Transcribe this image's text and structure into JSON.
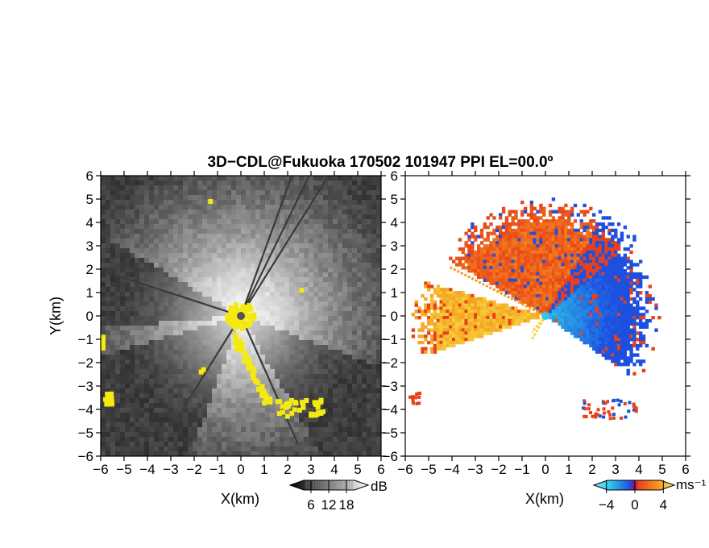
{
  "title": "3D−CDL@Fukuoka 170502 101947 PPI EL=00.0º",
  "colors": {
    "snr_dark": "#202020",
    "snr_bright": "#f4f4f4",
    "mask_yellow": "#f5ea10",
    "vel_red": "#e8401a",
    "vel_orange": "#f59a20",
    "vel_yellow": "#f6d23a",
    "vel_blue": "#1e50e0",
    "vel_cyan": "#30c8e8",
    "no_data": "#ffffff"
  },
  "chart_data": [
    {
      "type": "heatmap",
      "name": "snr-ppi",
      "xlabel": "X(km)",
      "ylabel": "Y(km)",
      "xlim": [
        -6,
        6
      ],
      "ylim": [
        -6,
        6
      ],
      "xticks": [
        "−6",
        "−5",
        "−4",
        "−3",
        "−2",
        "−1",
        "0",
        "1",
        "2",
        "3",
        "4",
        "5",
        "6"
      ],
      "yticks": [
        "−6",
        "−5",
        "−4",
        "−3",
        "−2",
        "−1",
        "0",
        "1",
        "2",
        "3",
        "4",
        "5",
        "6"
      ],
      "colorbar": {
        "unit": "dB",
        "ticks": [
          "6",
          "12",
          "18"
        ],
        "min": 0,
        "max": 24,
        "tick_values": [
          6,
          12,
          18
        ]
      },
      "blocked_sectors_deg": [
        [
          -145,
          -110
        ],
        [
          -60,
          -20
        ],
        [
          150,
          185
        ],
        [
          196,
          206
        ]
      ],
      "blanked_sector_deg": [
        205,
        245
      ]
    },
    {
      "type": "heatmap",
      "name": "doppler-velocity-ppi",
      "xlabel": "X(km)",
      "xlim": [
        -6,
        6
      ],
      "ylim": [
        -6,
        6
      ],
      "xticks": [
        "−6",
        "−5",
        "−4",
        "−3",
        "−2",
        "−1",
        "0",
        "1",
        "2",
        "3",
        "4",
        "5",
        "6"
      ],
      "colorbar": {
        "unit": "ms⁻¹",
        "ticks": [
          "−4",
          "0",
          "4"
        ],
        "min": -6,
        "max": 6,
        "tick_values": [
          -4,
          0,
          4
        ]
      },
      "velocity_regions": [
        {
          "sector_deg": [
            -35,
            40
          ],
          "max_range_km": 4.8,
          "sign": "negative"
        },
        {
          "sector_deg": [
            40,
            60
          ],
          "max_range_km": 5.2,
          "sign": "mixed"
        },
        {
          "sector_deg": [
            60,
            150
          ],
          "max_range_km": 5.0,
          "sign": "positive"
        },
        {
          "sector_deg": [
            164,
            198
          ],
          "max_range_km": 5.7,
          "sign": "positive-weak"
        }
      ]
    }
  ]
}
